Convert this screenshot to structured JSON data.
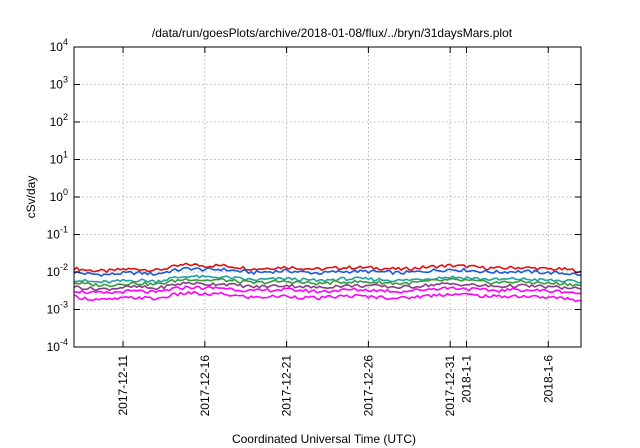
{
  "chart_data": {
    "type": "line",
    "title": "/data/run/goesPlots/archive/2018-01-08/flux/../bryn/31daysMars.plot",
    "xlabel": "Coordinated Universal Time (UTC)",
    "ylabel": "cSv/day",
    "yscale": "log",
    "ylim": [
      0.0001,
      10000
    ],
    "xlim": [
      "2017-12-08",
      "2018-01-08"
    ],
    "y_ticks": [
      {
        "value": 0.0001,
        "base": "10",
        "exp": "-4"
      },
      {
        "value": 0.001,
        "base": "10",
        "exp": "-3"
      },
      {
        "value": 0.01,
        "base": "10",
        "exp": "-2"
      },
      {
        "value": 0.1,
        "base": "10",
        "exp": "-1"
      },
      {
        "value": 1,
        "base": "10",
        "exp": "0"
      },
      {
        "value": 10,
        "base": "10",
        "exp": "1"
      },
      {
        "value": 100,
        "base": "10",
        "exp": "2"
      },
      {
        "value": 1000,
        "base": "10",
        "exp": "3"
      },
      {
        "value": 10000,
        "base": "10",
        "exp": "4"
      }
    ],
    "x_ticks": [
      {
        "date": "2017-12-11",
        "label": "2017-12-11"
      },
      {
        "date": "2017-12-16",
        "label": "2017-12-16"
      },
      {
        "date": "2017-12-21",
        "label": "2017-12-21"
      },
      {
        "date": "2017-12-26",
        "label": "2017-12-26"
      },
      {
        "date": "2017-12-31",
        "label": "2017-12-31"
      },
      {
        "date": "2018-01-01",
        "label": "2018-1-1"
      },
      {
        "date": "2018-01-06",
        "label": "2018-1-6"
      }
    ],
    "grid": true,
    "x_dates": [
      "2017-12-08",
      "2017-12-09",
      "2017-12-10",
      "2017-12-11",
      "2017-12-12",
      "2017-12-13",
      "2017-12-14",
      "2017-12-15",
      "2017-12-16",
      "2017-12-17",
      "2017-12-18",
      "2017-12-19",
      "2017-12-20",
      "2017-12-21",
      "2017-12-22",
      "2017-12-23",
      "2017-12-24",
      "2017-12-25",
      "2017-12-26",
      "2017-12-27",
      "2017-12-28",
      "2017-12-29",
      "2017-12-30",
      "2017-12-31",
      "2018-01-01",
      "2018-01-02",
      "2018-01-03",
      "2018-01-04",
      "2018-01-05",
      "2018-01-06",
      "2018-01-07",
      "2018-01-08"
    ],
    "series": [
      {
        "color": "#e01010",
        "values": [
          0.0125,
          0.011,
          0.0105,
          0.0118,
          0.012,
          0.011,
          0.0135,
          0.016,
          0.0145,
          0.015,
          0.0135,
          0.012,
          0.0128,
          0.0135,
          0.0125,
          0.0118,
          0.0128,
          0.0132,
          0.013,
          0.0125,
          0.0118,
          0.0128,
          0.014,
          0.0148,
          0.0142,
          0.013,
          0.0125,
          0.0132,
          0.0128,
          0.012,
          0.0118,
          0.0105
        ]
      },
      {
        "color": "#1a5ad9",
        "values": [
          0.0098,
          0.0088,
          0.0085,
          0.0093,
          0.0095,
          0.0088,
          0.0108,
          0.0125,
          0.0115,
          0.0118,
          0.0106,
          0.0096,
          0.0102,
          0.0107,
          0.0099,
          0.0093,
          0.0101,
          0.0104,
          0.0103,
          0.0099,
          0.0094,
          0.0101,
          0.011,
          0.0117,
          0.0112,
          0.0103,
          0.0099,
          0.0104,
          0.0101,
          0.0095,
          0.0093,
          0.0084
        ]
      },
      {
        "color": "#20a0a0",
        "values": [
          0.0062,
          0.0055,
          0.0053,
          0.0058,
          0.006,
          0.0056,
          0.0068,
          0.0078,
          0.0072,
          0.0074,
          0.0067,
          0.0061,
          0.0064,
          0.0067,
          0.0062,
          0.0058,
          0.0064,
          0.0066,
          0.0065,
          0.0062,
          0.0059,
          0.0064,
          0.0069,
          0.0073,
          0.007,
          0.0065,
          0.0062,
          0.0066,
          0.0063,
          0.006,
          0.0058,
          0.0052
        ]
      },
      {
        "color": "#3a9a3a",
        "values": [
          0.0052,
          0.0046,
          0.0044,
          0.0049,
          0.005,
          0.0046,
          0.0057,
          0.0066,
          0.006,
          0.0062,
          0.0056,
          0.0051,
          0.0054,
          0.0056,
          0.0052,
          0.0049,
          0.0053,
          0.0055,
          0.0054,
          0.0052,
          0.0049,
          0.0053,
          0.0058,
          0.0061,
          0.0059,
          0.0054,
          0.0052,
          0.0055,
          0.0053,
          0.005,
          0.0049,
          0.0044
        ]
      },
      {
        "color": "#8a3a8a",
        "values": [
          0.0041,
          0.0036,
          0.0035,
          0.0039,
          0.004,
          0.0036,
          0.0045,
          0.0052,
          0.0047,
          0.0049,
          0.0044,
          0.004,
          0.0042,
          0.0044,
          0.0041,
          0.0038,
          0.0042,
          0.0043,
          0.0043,
          0.0041,
          0.0039,
          0.0042,
          0.0046,
          0.0048,
          0.0046,
          0.0043,
          0.0041,
          0.0043,
          0.0042,
          0.004,
          0.0038,
          0.0035
        ]
      },
      {
        "color": "#ff00ff",
        "values": [
          0.0032,
          0.0028,
          0.0027,
          0.003,
          0.0031,
          0.0028,
          0.0035,
          0.004,
          0.0037,
          0.0038,
          0.0034,
          0.0031,
          0.0033,
          0.0034,
          0.0032,
          0.003,
          0.0032,
          0.0034,
          0.0033,
          0.0032,
          0.003,
          0.0033,
          0.0036,
          0.0038,
          0.0036,
          0.0033,
          0.0032,
          0.0034,
          0.0033,
          0.0031,
          0.003,
          0.0027
        ]
      },
      {
        "color": "#ff00ff",
        "values": [
          0.0022,
          0.0019,
          0.0018,
          0.002,
          0.0021,
          0.0019,
          0.0024,
          0.0028,
          0.0025,
          0.0026,
          0.0023,
          0.0021,
          0.0022,
          0.0023,
          0.0021,
          0.002,
          0.0022,
          0.0023,
          0.0022,
          0.0021,
          0.002,
          0.0022,
          0.0024,
          0.0026,
          0.0025,
          0.0023,
          0.0022,
          0.0023,
          0.0022,
          0.0021,
          0.002,
          0.0017
        ]
      }
    ]
  }
}
